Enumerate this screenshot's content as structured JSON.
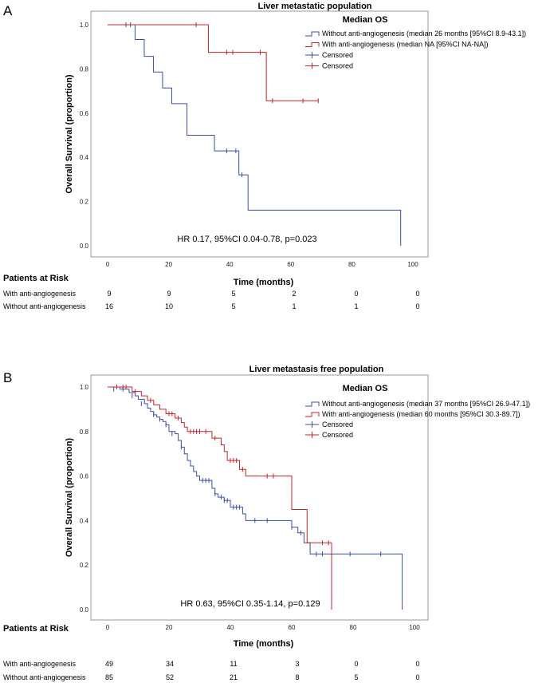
{
  "chart_data": [
    {
      "type": "line",
      "panel": "A",
      "title": "Liver metastatic population",
      "xlabel": "Time (months)",
      "ylabel": "Overall Survival (proportion)",
      "xlim": [
        0,
        100
      ],
      "ylim": [
        0,
        1
      ],
      "xticks": [
        0,
        20,
        40,
        60,
        80,
        100
      ],
      "yticks": [
        0.0,
        0.2,
        0.4,
        0.6,
        0.8,
        1.0
      ],
      "legend_title": "Median OS",
      "legend": [
        "Without anti-angiogenesis (median 26 months [95%CI 8.9-43.1])",
        "With anti-angiogenesis (median NA [95%CI NA-NA])",
        "Censored",
        "Censored"
      ],
      "annotation": "HR 0.17, 95%CI 0.04-0.78, p=0.023",
      "series": [
        {
          "name": "Without anti-angiogenesis",
          "color": "#3a4fa0",
          "steps": [
            [
              0,
              1.0
            ],
            [
              9,
              0.933
            ],
            [
              12,
              0.857
            ],
            [
              15,
              0.786
            ],
            [
              18,
              0.714
            ],
            [
              21,
              0.643
            ],
            [
              26,
              0.5
            ],
            [
              35,
              0.429
            ],
            [
              43,
              0.321
            ],
            [
              46,
              0.161
            ],
            [
              96,
              0.0
            ]
          ],
          "censored": [
            [
              6,
              1.0
            ],
            [
              7.5,
              1.0
            ],
            [
              39,
              0.429
            ],
            [
              42,
              0.429
            ],
            [
              44,
              0.321
            ]
          ]
        },
        {
          "name": "With anti-angiogenesis",
          "color": "#c0262d",
          "steps": [
            [
              0,
              1.0
            ],
            [
              33,
              0.875
            ],
            [
              52,
              0.656
            ],
            [
              69,
              0.656
            ]
          ],
          "censored": [
            [
              29,
              1.0
            ],
            [
              39,
              0.875
            ],
            [
              41,
              0.875
            ],
            [
              50,
              0.875
            ],
            [
              54,
              0.656
            ],
            [
              64,
              0.656
            ],
            [
              69,
              0.656
            ]
          ]
        }
      ],
      "risk_table": {
        "header": "Patients at Risk",
        "rows": [
          {
            "label": "With anti-angiogenesis",
            "values": [
              "9",
              "9",
              "5",
              "2",
              "0",
              "0"
            ]
          },
          {
            "label": "Without anti-angiogenesis",
            "values": [
              "16",
              "10",
              "5",
              "1",
              "1",
              "0"
            ]
          }
        ]
      }
    },
    {
      "type": "line",
      "panel": "B",
      "title": "Liver metastasis free population",
      "xlabel": "Time (months)",
      "ylabel": "Overall Survival (proportion)",
      "xlim": [
        0,
        100
      ],
      "ylim": [
        0,
        1
      ],
      "xticks": [
        0,
        20,
        40,
        60,
        80,
        100
      ],
      "yticks": [
        0.0,
        0.2,
        0.4,
        0.6,
        0.8,
        1.0
      ],
      "legend_title": "Median OS",
      "legend": [
        "Without anti-angiogenesis (median 37 months [95%CI 26.9-47.1])",
        "With anti-angiogenesis (median 60 months [95%CI 30.3-89.7])",
        "Censored",
        "Censored"
      ],
      "annotation": "HR 0.63, 95%CI 0.35-1.14, p=0.129",
      "series": [
        {
          "name": "Without anti-angiogenesis",
          "color": "#3a4fa0",
          "steps": [
            [
              0,
              1.0
            ],
            [
              4,
              0.99
            ],
            [
              7,
              0.975
            ],
            [
              9,
              0.96
            ],
            [
              10,
              0.945
            ],
            [
              12,
              0.925
            ],
            [
              13,
              0.905
            ],
            [
              14,
              0.89
            ],
            [
              15,
              0.875
            ],
            [
              16,
              0.865
            ],
            [
              17,
              0.855
            ],
            [
              18,
              0.845
            ],
            [
              19,
              0.83
            ],
            [
              20,
              0.8
            ],
            [
              22,
              0.79
            ],
            [
              23,
              0.76
            ],
            [
              24,
              0.73
            ],
            [
              25,
              0.7
            ],
            [
              26,
              0.67
            ],
            [
              27,
              0.645
            ],
            [
              28,
              0.62
            ],
            [
              29,
              0.6
            ],
            [
              30,
              0.58
            ],
            [
              34,
              0.545
            ],
            [
              35,
              0.52
            ],
            [
              36,
              0.505
            ],
            [
              38,
              0.49
            ],
            [
              40,
              0.46
            ],
            [
              44,
              0.43
            ],
            [
              45,
              0.4
            ],
            [
              60,
              0.37
            ],
            [
              62,
              0.345
            ],
            [
              64,
              0.3
            ],
            [
              66,
              0.25
            ],
            [
              96,
              0.0
            ]
          ],
          "censored": [
            [
              2,
              0.99
            ],
            [
              5,
              0.99
            ],
            [
              8,
              0.96
            ],
            [
              11,
              0.925
            ],
            [
              15,
              0.875
            ],
            [
              17,
              0.855
            ],
            [
              19,
              0.83
            ],
            [
              21,
              0.79
            ],
            [
              24,
              0.73
            ],
            [
              31,
              0.58
            ],
            [
              32,
              0.58
            ],
            [
              33,
              0.58
            ],
            [
              35,
              0.52
            ],
            [
              37,
              0.505
            ],
            [
              38,
              0.49
            ],
            [
              39,
              0.49
            ],
            [
              41,
              0.46
            ],
            [
              42,
              0.46
            ],
            [
              43,
              0.46
            ],
            [
              48,
              0.4
            ],
            [
              52,
              0.4
            ],
            [
              60,
              0.37
            ],
            [
              63,
              0.345
            ],
            [
              68,
              0.25
            ],
            [
              70,
              0.25
            ],
            [
              79,
              0.25
            ],
            [
              89,
              0.25
            ]
          ]
        },
        {
          "name": "With anti-angiogenesis",
          "color": "#c0262d",
          "steps": [
            [
              0,
              1.0
            ],
            [
              8,
              0.98
            ],
            [
              11,
              0.96
            ],
            [
              13,
              0.94
            ],
            [
              15,
              0.92
            ],
            [
              17,
              0.9
            ],
            [
              19,
              0.88
            ],
            [
              22,
              0.86
            ],
            [
              24,
              0.84
            ],
            [
              25,
              0.82
            ],
            [
              26,
              0.8
            ],
            [
              34,
              0.77
            ],
            [
              37,
              0.74
            ],
            [
              38,
              0.71
            ],
            [
              39,
              0.67
            ],
            [
              43,
              0.63
            ],
            [
              45,
              0.6
            ],
            [
              60,
              0.45
            ],
            [
              65,
              0.3
            ],
            [
              73,
              0.0
            ]
          ],
          "censored": [
            [
              3,
              1.0
            ],
            [
              5,
              1.0
            ],
            [
              6,
              1.0
            ],
            [
              9,
              0.98
            ],
            [
              14,
              0.94
            ],
            [
              20,
              0.88
            ],
            [
              21,
              0.88
            ],
            [
              23,
              0.86
            ],
            [
              27,
              0.8
            ],
            [
              28,
              0.8
            ],
            [
              29,
              0.8
            ],
            [
              30,
              0.8
            ],
            [
              32,
              0.8
            ],
            [
              35,
              0.77
            ],
            [
              40,
              0.67
            ],
            [
              41,
              0.67
            ],
            [
              42,
              0.67
            ],
            [
              44,
              0.63
            ],
            [
              52,
              0.6
            ],
            [
              54,
              0.6
            ],
            [
              70,
              0.3
            ],
            [
              72,
              0.3
            ]
          ]
        }
      ],
      "risk_table": {
        "header": "Patients at Risk",
        "rows": [
          {
            "label": "With anti-angiogenesis",
            "values": [
              "49",
              "34",
              "11",
              "3",
              "0",
              "0"
            ]
          },
          {
            "label": "Without anti-angiogenesis",
            "values": [
              "85",
              "52",
              "21",
              "8",
              "5",
              "0"
            ]
          }
        ]
      }
    }
  ]
}
